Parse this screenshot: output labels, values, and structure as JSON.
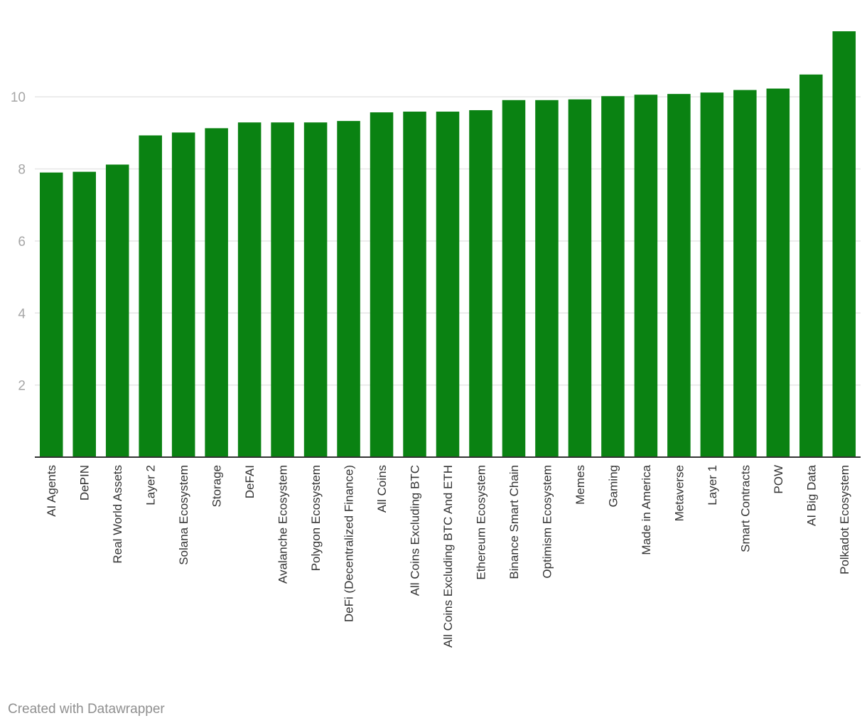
{
  "chart_data": {
    "type": "bar",
    "categories": [
      "AI Agents",
      "DePIN",
      "Real World Assets",
      "Layer 2",
      "Solana Ecosystem",
      "Storage",
      "DeFAI",
      "Avalanche Ecosystem",
      "Polygon Ecosystem",
      "DeFi (Decentralized Finance)",
      "All Coins",
      "All Coins Excluding BTC",
      "All Coins Excluding BTC And ETH",
      "Ethereum Ecosystem",
      "Binance Smart Chain",
      "Optimism Ecosystem",
      "Memes",
      "Gaming",
      "Made in America",
      "Metaverse",
      "Layer 1",
      "Smart Contracts",
      "POW",
      "AI Big Data",
      "Polkadot Ecosystem"
    ],
    "values": [
      7.9,
      7.92,
      8.12,
      8.93,
      9.01,
      9.13,
      9.29,
      9.29,
      9.29,
      9.33,
      9.57,
      9.59,
      9.59,
      9.63,
      9.91,
      9.91,
      9.93,
      10.02,
      10.06,
      10.08,
      10.12,
      10.19,
      10.23,
      10.62,
      11.82
    ],
    "yticks": [
      2,
      4,
      6,
      8,
      10
    ],
    "ylim": [
      0,
      11.82
    ],
    "bar_color": "#0a8212",
    "grid": true,
    "legend": "none"
  },
  "credit": "Created with Datawrapper"
}
